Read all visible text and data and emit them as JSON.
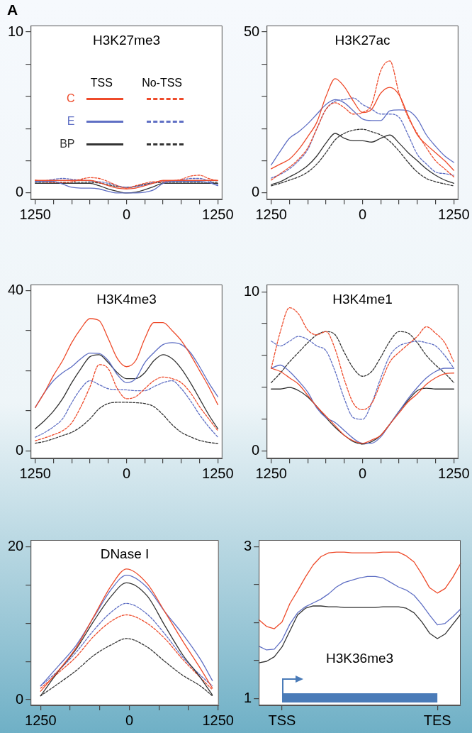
{
  "chart_data": [
    {
      "type": "line",
      "title": "H3K27me3",
      "annotations": [
        "A",
        "TSS",
        "No-TSS"
      ],
      "legend": "left",
      "categories": [
        "1250",
        null,
        null,
        null,
        null,
        null,
        null,
        null,
        null,
        null,
        "0",
        null,
        null,
        null,
        null,
        null,
        null,
        null,
        null,
        null,
        "1250"
      ],
      "ylim": [
        -0.4,
        10.4
      ],
      "yticks": [
        0,
        {
          "value": 2,
          "label": null
        },
        {
          "value": 4,
          "label": null
        },
        {
          "value": 6,
          "label": null
        },
        {
          "value": 8,
          "label": null
        },
        10
      ],
      "series": [
        {
          "name": "C",
          "color": "#ee4b2b",
          "line_style": "solid",
          "values": [
            0.78,
            0.78,
            0.78,
            0.78,
            0.78,
            0.78,
            0.78,
            0.65,
            0.45,
            0.3,
            0.25,
            0.3,
            0.45,
            0.62,
            0.78,
            0.78,
            0.78,
            0.78,
            0.78,
            0.78,
            0.78
          ]
        },
        {
          "name": "E",
          "color": "#5f6fc4",
          "line_style": "solid",
          "values": [
            0.72,
            0.72,
            0.72,
            0.55,
            0.35,
            0.3,
            0.3,
            0.25,
            0.1,
            0,
            0,
            0,
            0.05,
            0.2,
            0.6,
            0.72,
            0.72,
            0.72,
            0.72,
            0.65,
            0.45
          ]
        },
        {
          "name": "BP",
          "color": "#333333",
          "line_style": "solid",
          "values": [
            0.6,
            0.6,
            0.6,
            0.6,
            0.6,
            0.6,
            0.6,
            0.45,
            0.25,
            0.1,
            0,
            0.05,
            0.2,
            0.4,
            0.6,
            0.6,
            0.6,
            0.6,
            0.6,
            0.6,
            0.6
          ]
        },
        {
          "color": "#ee4b2b",
          "line_style": "dashed",
          "values": [
            0.8,
            0.7,
            0.65,
            0.65,
            0.7,
            0.85,
            0.95,
            0.9,
            0.7,
            0.45,
            0.3,
            0.45,
            0.6,
            0.7,
            0.7,
            0.75,
            0.85,
            1.05,
            1.1,
            0.9,
            0.75
          ]
        },
        {
          "color": "#5f6fc4",
          "line_style": "dashed",
          "values": [
            0.7,
            0.75,
            0.85,
            0.9,
            0.85,
            0.8,
            0.75,
            0.7,
            0.6,
            0.45,
            0.35,
            0.4,
            0.5,
            0.65,
            0.7,
            0.75,
            0.8,
            0.9,
            0.9,
            0.75,
            0.5
          ]
        },
        {
          "color": "#333333",
          "line_style": "dashed",
          "values": [
            0.66,
            0.66,
            0.66,
            0.66,
            0.66,
            0.66,
            0.66,
            0.62,
            0.5,
            0.4,
            0.35,
            0.4,
            0.55,
            0.62,
            0.66,
            0.66,
            0.66,
            0.66,
            0.66,
            0.66,
            0.66
          ]
        }
      ]
    },
    {
      "type": "line",
      "title": "H3K27ac",
      "categories": [
        "1250",
        null,
        null,
        null,
        null,
        null,
        null,
        null,
        null,
        null,
        "0",
        null,
        null,
        null,
        null,
        null,
        null,
        null,
        null,
        null,
        "1250"
      ],
      "ylim": [
        -2,
        52
      ],
      "yticks": [
        0,
        {
          "value": 10,
          "label": null
        },
        {
          "value": 20,
          "label": null
        },
        {
          "value": 30,
          "label": null
        },
        {
          "value": 40,
          "label": null
        },
        50
      ],
      "series": [
        {
          "color": "#ee4b2b",
          "line_style": "solid",
          "values": [
            7.5,
            9,
            10.5,
            13.5,
            17.5,
            22,
            30,
            35.5,
            33,
            28.5,
            25,
            26,
            31,
            32.8,
            30.5,
            24,
            18,
            15,
            12.5,
            10,
            7
          ]
        },
        {
          "color": "#5f6fc4",
          "line_style": "solid",
          "values": [
            8.7,
            13,
            17,
            19,
            21.5,
            24.5,
            27.5,
            29,
            28,
            25.5,
            23,
            22.5,
            22.5,
            25.5,
            25.8,
            25.5,
            23,
            18,
            14.5,
            11.5,
            9.5
          ]
        },
        {
          "color": "#333333",
          "line_style": "solid",
          "values": [
            2.6,
            3.5,
            5,
            6.5,
            8.5,
            11.5,
            15.5,
            18.5,
            17,
            16.2,
            16.2,
            15.8,
            17,
            18,
            15.5,
            12.5,
            10,
            7.5,
            5.5,
            4,
            3
          ]
        },
        {
          "color": "#ee4b2b",
          "line_style": "dashed",
          "values": [
            4,
            6,
            8,
            10.5,
            14,
            20,
            26,
            28,
            26.5,
            24.5,
            25,
            27.5,
            38,
            41,
            31,
            23.5,
            18.5,
            14,
            10,
            7.5,
            5
          ]
        },
        {
          "color": "#5f6fc4",
          "line_style": "dashed",
          "values": [
            4.6,
            5.8,
            7.5,
            10,
            13.5,
            20,
            26,
            28.5,
            29,
            29.5,
            27.5,
            26,
            24.5,
            24.5,
            23.5,
            18,
            12,
            9,
            6.5,
            6,
            5.5
          ]
        },
        {
          "color": "#333333",
          "line_style": "dashed",
          "values": [
            2.2,
            3,
            4,
            5,
            6.5,
            9,
            12.5,
            16.5,
            18.5,
            19.5,
            19.8,
            19,
            18,
            16,
            13,
            9.5,
            6.5,
            4.5,
            3.5,
            2.8,
            2.2
          ]
        }
      ]
    },
    {
      "type": "line",
      "title": "H3K4me3",
      "categories": [
        "1250",
        null,
        null,
        null,
        null,
        null,
        null,
        null,
        null,
        null,
        "0",
        null,
        null,
        null,
        null,
        null,
        null,
        null,
        null,
        null,
        "1250"
      ],
      "ylim": [
        -1.9,
        41.5
      ],
      "yticks": [
        0,
        {
          "value": 10,
          "label": null
        },
        {
          "value": 20,
          "label": null
        },
        {
          "value": 30,
          "label": null
        },
        40
      ],
      "series": [
        {
          "color": "#ee4b2b",
          "line_style": "solid",
          "values": [
            10.8,
            14.5,
            18.8,
            22.5,
            27,
            30.5,
            33,
            32.5,
            28,
            23,
            21,
            22.5,
            28,
            32,
            32,
            30,
            27.5,
            24,
            20,
            16,
            11.5
          ]
        },
        {
          "color": "#5f6fc4",
          "line_style": "solid",
          "values": [
            10.8,
            14.5,
            17.5,
            19.5,
            21,
            23,
            24.4,
            24.3,
            22.5,
            19,
            17,
            18,
            22,
            24.5,
            26.5,
            27,
            26.5,
            24.5,
            21,
            17,
            13.5
          ]
        },
        {
          "color": "#333333",
          "line_style": "solid",
          "values": [
            5.5,
            7.5,
            9.9,
            13,
            17,
            20.5,
            23.5,
            24,
            22,
            19.5,
            18,
            18,
            19.5,
            22.5,
            24,
            23,
            20.5,
            17,
            13,
            9,
            5.5
          ]
        },
        {
          "color": "#ee4b2b",
          "line_style": "dashed",
          "values": [
            2.5,
            3.2,
            4,
            5,
            7,
            11,
            16,
            21.5,
            20.5,
            15.5,
            13,
            13.5,
            15.5,
            17.5,
            18.4,
            18,
            17,
            14.5,
            11,
            8,
            5
          ]
        },
        {
          "color": "#5f6fc4",
          "line_style": "dashed",
          "values": [
            3.4,
            4.5,
            6,
            8,
            12,
            15.5,
            17.5,
            16.5,
            15.5,
            15.3,
            15.2,
            15,
            15,
            16,
            17,
            17.5,
            15.5,
            12.5,
            9,
            6,
            3.4
          ]
        },
        {
          "color": "#333333",
          "line_style": "dashed",
          "values": [
            1.9,
            2.3,
            3,
            3.8,
            4.6,
            6,
            8,
            10.5,
            11.8,
            12.1,
            12.1,
            12,
            11.8,
            11,
            9,
            6.5,
            4.6,
            3.5,
            2.6,
            2.1,
            1.8
          ]
        }
      ]
    },
    {
      "type": "line",
      "title": "H3K4me1",
      "categories": [
        "1250",
        null,
        null,
        null,
        null,
        null,
        null,
        null,
        null,
        null,
        "0",
        null,
        null,
        null,
        null,
        null,
        null,
        null,
        null,
        null,
        "1250"
      ],
      "ylim": [
        -0.45,
        10.45
      ],
      "yticks": [
        0,
        {
          "value": 2,
          "label": null
        },
        {
          "value": 4,
          "label": null
        },
        {
          "value": 6,
          "label": null
        },
        {
          "value": 8,
          "label": null
        },
        10
      ],
      "series": [
        {
          "color": "#ee4b2b",
          "line_style": "solid",
          "values": [
            5.2,
            5,
            4.6,
            4.2,
            3.5,
            2.8,
            2.2,
            1.6,
            1,
            0.65,
            0.5,
            0.7,
            1,
            1.7,
            2.4,
            3.1,
            3.6,
            4.2,
            4.6,
            4.85,
            4.9
          ]
        },
        {
          "color": "#5f6fc4",
          "line_style": "solid",
          "values": [
            5.2,
            5.4,
            5,
            4.4,
            3.7,
            2.7,
            2.1,
            1.8,
            1.3,
            0.8,
            0.5,
            0.5,
            0.9,
            1.7,
            2.5,
            3.3,
            4,
            4.6,
            5,
            5.2,
            5.2
          ]
        },
        {
          "color": "#333333",
          "line_style": "solid",
          "values": [
            3.9,
            3.9,
            4,
            3.8,
            3.4,
            2.8,
            2.1,
            1.5,
            1,
            0.6,
            0.45,
            0.6,
            1,
            1.7,
            2.5,
            3.2,
            3.8,
            3.95,
            3.9,
            3.9,
            3.9
          ]
        },
        {
          "color": "#ee4b2b",
          "line_style": "dashed",
          "values": [
            5.2,
            7.5,
            9,
            8.6,
            7.6,
            7.3,
            7.5,
            6.4,
            4.5,
            3,
            2.6,
            3,
            4.3,
            5.6,
            6.2,
            6.7,
            7.2,
            7.8,
            7.4,
            6.8,
            5.6
          ]
        },
        {
          "color": "#5f6fc4",
          "line_style": "dashed",
          "values": [
            6.9,
            6.6,
            6.9,
            7.2,
            7,
            6.6,
            6.3,
            5,
            3.3,
            2.1,
            2,
            3,
            4.6,
            6,
            6.6,
            6.8,
            6.9,
            6.8,
            6.6,
            6,
            5.2
          ]
        },
        {
          "color": "#333333",
          "line_style": "dashed",
          "values": [
            4.3,
            4.9,
            5.6,
            6.2,
            6.8,
            7.3,
            7.5,
            7.3,
            6.2,
            5.2,
            4.7,
            5,
            5.9,
            6.9,
            7.5,
            7.4,
            6.8,
            6,
            5.4,
            4.9,
            4.3
          ]
        }
      ]
    },
    {
      "type": "line",
      "title": "DNase I",
      "x": [
        -1250,
        -1000,
        -750,
        -500,
        -250,
        -40,
        250,
        500,
        750,
        1000,
        1170
      ],
      "xlim": [
        -1390,
        1260
      ],
      "xticks": [
        {
          "value": -1250,
          "label": "1250"
        },
        {
          "value": -833.33,
          "label": null
        },
        {
          "value": -416.67,
          "label": null
        },
        0,
        {
          "value": 416.67,
          "label": null
        },
        {
          "value": 833.33,
          "label": null
        },
        1250
      ],
      "ylim": [
        -0.74,
        20.9
      ],
      "yticks": [
        0,
        {
          "value": 5,
          "label": null
        },
        {
          "value": 10,
          "label": null
        },
        {
          "value": 15,
          "label": null
        },
        20
      ],
      "series": [
        {
          "color": "#ee4b2b",
          "line_style": "solid",
          "values": [
            1.1,
            3.8,
            6.8,
            10.9,
            15,
            17.1,
            15.2,
            11.5,
            7.7,
            4.1,
            1.5
          ]
        },
        {
          "color": "#5f6fc4",
          "line_style": "solid",
          "values": [
            1.8,
            4.4,
            7.1,
            10.8,
            14.5,
            16.3,
            14.7,
            11.5,
            8.6,
            5.3,
            2.5
          ]
        },
        {
          "color": "#333333",
          "line_style": "solid",
          "values": [
            0.5,
            3.7,
            6.6,
            10.3,
            13.6,
            15.3,
            13.6,
            9.7,
            5.9,
            2.9,
            0.6
          ]
        },
        {
          "color": "#ee4b2b",
          "line_style": "dashed",
          "values": [
            1.5,
            3.5,
            5.6,
            8.3,
            10.3,
            11.1,
            10,
            8,
            5.3,
            2.9,
            1.3
          ]
        },
        {
          "color": "#5f6fc4",
          "line_style": "dashed",
          "values": [
            1.8,
            3.8,
            6.2,
            9.1,
            11.5,
            12.6,
            11.2,
            8.6,
            5.6,
            3.2,
            1.8
          ]
        },
        {
          "color": "#333333",
          "line_style": "dashed",
          "values": [
            0.5,
            2.1,
            3.8,
            5.8,
            7.2,
            8,
            6.9,
            5,
            3.2,
            1.8,
            0.5
          ]
        }
      ]
    },
    {
      "type": "line",
      "title": "H3K36me3",
      "categories": [
        null,
        null,
        null,
        "TSS",
        null,
        null,
        null,
        null,
        null,
        null,
        null,
        null,
        null,
        null,
        null,
        null,
        null,
        null,
        null,
        null,
        null,
        null,
        null,
        "TES",
        null,
        null,
        null
      ],
      "ylim": [
        0.91,
        3.09
      ],
      "yticks": [
        1,
        {
          "value": 1.5,
          "label": null
        },
        {
          "value": 2,
          "label": null
        },
        {
          "value": 2.5,
          "label": null
        },
        3
      ],
      "series": [
        {
          "color": "#ee4b2b",
          "line_style": "solid",
          "values": [
            2.04,
            1.95,
            1.92,
            2.01,
            2.25,
            2.42,
            2.6,
            2.76,
            2.87,
            2.92,
            2.93,
            2.93,
            2.92,
            2.92,
            2.92,
            2.92,
            2.93,
            2.93,
            2.93,
            2.88,
            2.8,
            2.64,
            2.46,
            2.39,
            2.45,
            2.6,
            2.78
          ]
        },
        {
          "color": "#5f6fc4",
          "line_style": "solid",
          "values": [
            1.69,
            1.64,
            1.65,
            1.77,
            1.98,
            2.13,
            2.21,
            2.26,
            2.31,
            2.38,
            2.47,
            2.53,
            2.56,
            2.59,
            2.61,
            2.61,
            2.59,
            2.53,
            2.47,
            2.43,
            2.36,
            2.24,
            2.1,
            1.97,
            1.99,
            2.08,
            2.18
          ]
        },
        {
          "color": "#333333",
          "line_style": "solid",
          "values": [
            1.47,
            1.49,
            1.55,
            1.68,
            1.89,
            2.1,
            2.19,
            2.22,
            2.22,
            2.21,
            2.21,
            2.2,
            2.2,
            2.2,
            2.2,
            2.2,
            2.21,
            2.21,
            2.21,
            2.19,
            2.13,
            2.01,
            1.86,
            1.79,
            1.85,
            1.98,
            2.11
          ]
        }
      ]
    }
  ]
}
